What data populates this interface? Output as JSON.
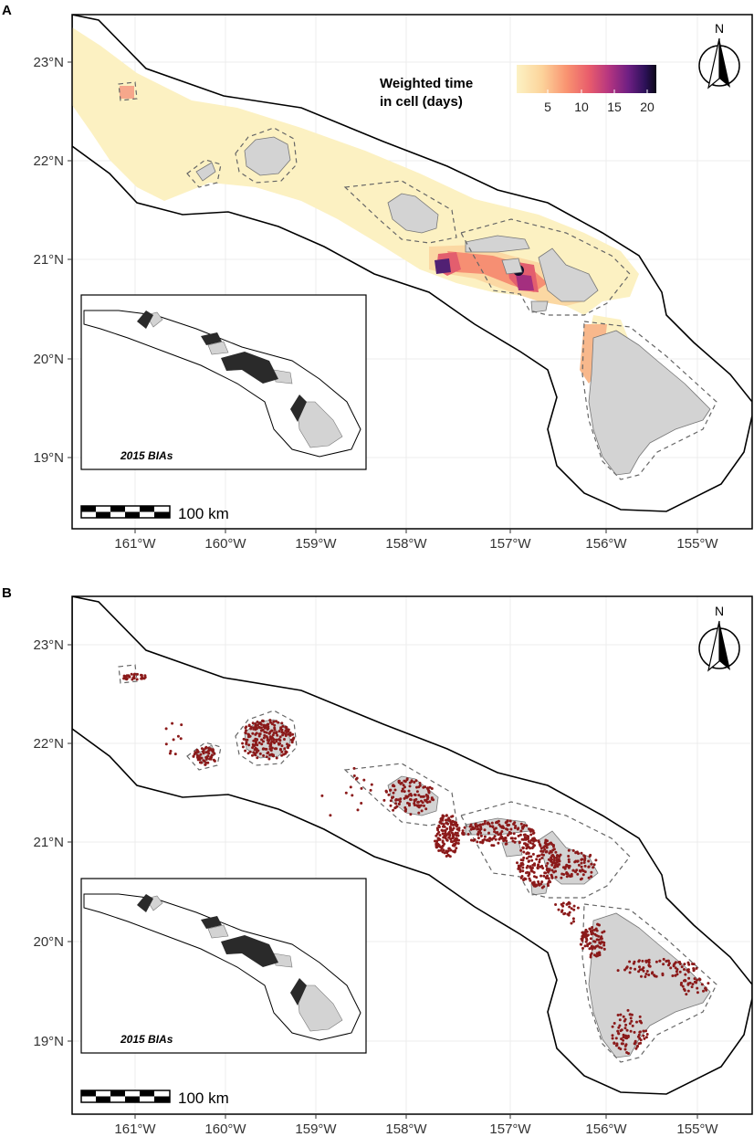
{
  "figure": {
    "panels": [
      {
        "letter": "A",
        "legend": {
          "title_line1": "Weighted time",
          "title_line2": "in cell (days)",
          "ticks": [
            "5",
            "10",
            "15",
            "20"
          ]
        },
        "inset_label": "2015 BIAs",
        "scale_bar_label": "100 km",
        "north_label": "N"
      },
      {
        "letter": "B",
        "inset_label": "2015 BIAs",
        "scale_bar_label": "100 km",
        "north_label": "N"
      }
    ],
    "axes": {
      "x_ticks": [
        "161°W",
        "160°W",
        "159°W",
        "158°W",
        "157°W",
        "156°W",
        "155°W"
      ],
      "y_ticks": [
        "23°N",
        "22°N",
        "21°N",
        "20°N",
        "19°N"
      ]
    },
    "colors": {
      "land": "#d3d3d3",
      "bia": "#2b2b2b",
      "points": "#8b1a1a",
      "frame": "#000000",
      "grid": "#ebebeb",
      "heat_low": "#fcf2c4",
      "heat_high": "#120c2a"
    }
  },
  "chart_data": {
    "type": "map",
    "region": "Main Hawaiian Islands",
    "xlim": [
      -161.5,
      -154.4
    ],
    "ylim": [
      18.3,
      23.5
    ],
    "panels": [
      {
        "panel": "A",
        "kind": "gridded heatmap",
        "color_scale": {
          "label": "Weighted time in cell (days)",
          "min": 0,
          "max": 21,
          "ticks": [
            5,
            10,
            15,
            20
          ],
          "palette": "magma (reversed)"
        },
        "hotspots": [
          {
            "lon": -157.7,
            "lat": 20.95,
            "days": 18
          },
          {
            "lon": -156.8,
            "lat": 20.9,
            "days": 21
          },
          {
            "lon": -156.65,
            "lat": 20.75,
            "days": 10
          },
          {
            "lon": -157.2,
            "lat": 20.95,
            "days": 8
          },
          {
            "lon": -161.0,
            "lat": 22.75,
            "days": 4
          }
        ]
      },
      {
        "panel": "B",
        "kind": "location points",
        "concentrations": [
          "Kauai / Niihau",
          "Oahu",
          "Penguin Bank",
          "Maui Nui",
          "Hawaii Island coast"
        ]
      }
    ],
    "inset": "2015 BIAs"
  }
}
